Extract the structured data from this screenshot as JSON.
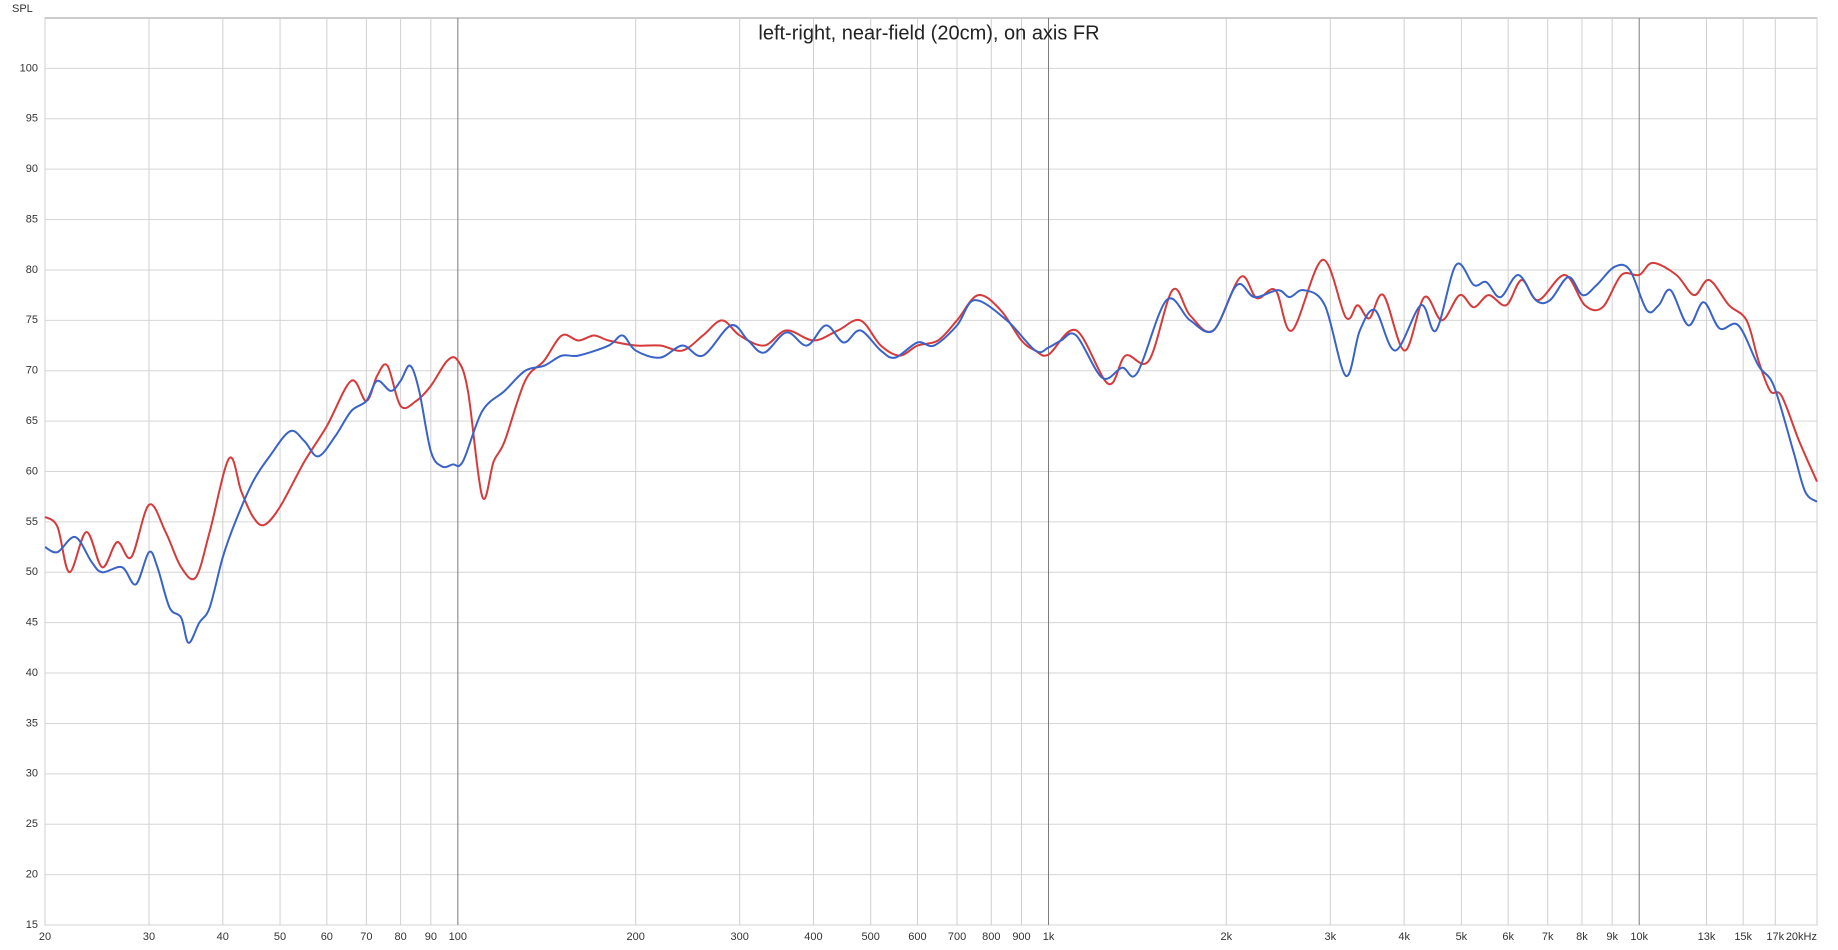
{
  "chart_data": {
    "type": "line",
    "title": "left-right, near-field (20cm), on axis FR",
    "y_label": "SPL",
    "xscale": "log",
    "xlim": [
      20,
      20000
    ],
    "ylim": [
      15,
      105
    ],
    "yticks": [
      15,
      20,
      25,
      30,
      35,
      40,
      45,
      50,
      55,
      60,
      65,
      70,
      75,
      80,
      85,
      90,
      95,
      100
    ],
    "xticks": [
      20,
      30,
      40,
      50,
      60,
      70,
      80,
      90,
      100,
      200,
      300,
      400,
      500,
      600,
      700,
      800,
      900,
      {
        "value": 1000,
        "label": "1k"
      },
      {
        "value": 2000,
        "label": "2k"
      },
      {
        "value": 3000,
        "label": "3k"
      },
      {
        "value": 4000,
        "label": "4k"
      },
      {
        "value": 5000,
        "label": "5k"
      },
      {
        "value": 6000,
        "label": "6k"
      },
      {
        "value": 7000,
        "label": "7k"
      },
      {
        "value": 8000,
        "label": "8k"
      },
      {
        "value": 9000,
        "label": "9k"
      },
      {
        "value": 10000,
        "label": "10k"
      },
      {
        "value": 13000,
        "label": "13k"
      },
      {
        "value": 15000,
        "label": "15k"
      },
      {
        "value": 17000,
        "label": "17k"
      },
      {
        "value": 20000,
        "label": "20kHz"
      }
    ],
    "grid": true,
    "series": [
      {
        "color": "#d63a3a",
        "x": [
          20,
          21,
          22,
          23.5,
          25,
          26.5,
          28,
          30,
          32,
          34,
          36,
          38,
          41,
          43,
          45,
          47,
          50,
          55,
          60,
          66,
          70,
          73,
          76,
          80,
          85,
          90,
          96,
          100,
          104,
          110,
          115,
          120,
          130,
          140,
          150,
          160,
          170,
          180,
          200,
          220,
          240,
          260,
          280,
          300,
          330,
          360,
          400,
          440,
          480,
          520,
          560,
          600,
          650,
          700,
          760,
          830,
          900,
          950,
          1000,
          1114,
          1262,
          1350,
          1479,
          1622,
          1736,
          1902,
          2114,
          2252,
          2422,
          2584,
          2910,
          3186,
          3336,
          3492,
          3690,
          4008,
          4328,
          4634,
          4966,
          5248,
          5560,
          5956,
          6324,
          6746,
          7482,
          8092,
          8670,
          9332,
          10000,
          10544,
          11562,
          12388,
          13132,
          14192,
          15200,
          15920,
          16660,
          17420,
          18660,
          20000
        ],
        "values": [
          55.5,
          54.5,
          50,
          54,
          50.5,
          53,
          51.5,
          56.7,
          54,
          50.5,
          49.5,
          54,
          61.3,
          58,
          55.5,
          54.7,
          56.5,
          61,
          64.5,
          69,
          67,
          69.5,
          70.5,
          66.5,
          67,
          68.5,
          71,
          71,
          68,
          57.5,
          61,
          63,
          69,
          71,
          73.5,
          73,
          73.5,
          73,
          72.5,
          72.5,
          72,
          73.5,
          75,
          73.5,
          72.5,
          74,
          73,
          74,
          75,
          72.5,
          71.5,
          72.5,
          73,
          75,
          77.5,
          76,
          73,
          72,
          71.6,
          74,
          68.7,
          71.5,
          71,
          78,
          75.5,
          74,
          79.3,
          77.2,
          78,
          74,
          81,
          75.3,
          76.5,
          75.2,
          77.5,
          72,
          77.3,
          75,
          77.5,
          76.3,
          77.5,
          76.5,
          79,
          77,
          79.5,
          76.5,
          76.3,
          79.5,
          79.5,
          80.7,
          79.5,
          77.5,
          79,
          76.5,
          75,
          71,
          68,
          67.5,
          63,
          59
        ]
      },
      {
        "color": "#3a63c8",
        "x": [
          20,
          21,
          22.5,
          24,
          25,
          27,
          28.5,
          30,
          31,
          32.5,
          34,
          35,
          36.5,
          38,
          40,
          42,
          45,
          48,
          52,
          55,
          58,
          62,
          66,
          70,
          73,
          77,
          80,
          83,
          86,
          90,
          94,
          98,
          102,
          110,
          120,
          130,
          140,
          150,
          160,
          180,
          190,
          200,
          220,
          240,
          260,
          290,
          310,
          330,
          360,
          390,
          420,
          450,
          480,
          520,
          550,
          600,
          640,
          700,
          750,
          850,
          950,
          1000,
          1050,
          1114,
          1233,
          1332,
          1414,
          1584,
          1736,
          1902,
          2084,
          2232,
          2446,
          2560,
          2704,
          2936,
          3186,
          3366,
          3572,
          3864,
          4270,
          4530,
          4898,
          5248,
          5508,
          5822,
          6240,
          6684,
          7064,
          7588,
          8020,
          8472,
          9078,
          9638,
          10304,
          10790,
          11298,
          12108,
          12854,
          13680,
          14720,
          15920,
          16900,
          18240,
          19100,
          20000
        ],
        "values": [
          52.5,
          52,
          53.5,
          51,
          50,
          50.5,
          48.8,
          52,
          50.5,
          46.5,
          45.5,
          43,
          45,
          46.5,
          51.5,
          55,
          59,
          61.5,
          64,
          63,
          61.5,
          63.5,
          66,
          67,
          69,
          68,
          69,
          70.5,
          68,
          62,
          60.5,
          60.7,
          61,
          66,
          68,
          70,
          70.5,
          71.5,
          71.5,
          72.5,
          73.5,
          72,
          71.3,
          72.5,
          71.5,
          74.5,
          73,
          71.8,
          73.8,
          72.5,
          74.5,
          72.8,
          74,
          72,
          71.3,
          72.8,
          72.5,
          74.5,
          77,
          75,
          72,
          72.3,
          73,
          73.5,
          69.3,
          70.3,
          69.8,
          77,
          75,
          74,
          78.5,
          77.3,
          78,
          77.3,
          78,
          76.5,
          69.5,
          74,
          76,
          72,
          76.5,
          74,
          80.5,
          78.5,
          78.8,
          77.3,
          79.5,
          77,
          77,
          79.3,
          77.5,
          78.5,
          80.3,
          80,
          76,
          76.5,
          78,
          74.5,
          76.8,
          74.2,
          74.5,
          70.5,
          68.5,
          62,
          58,
          57
        ]
      }
    ]
  }
}
